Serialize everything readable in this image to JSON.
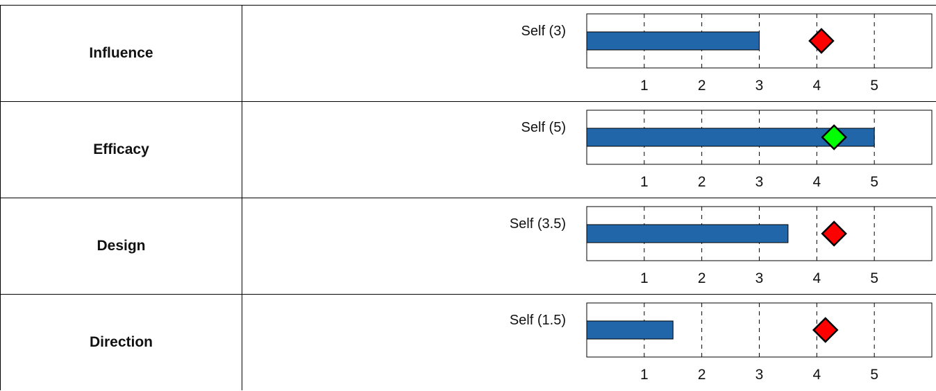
{
  "chart_data": [
    {
      "type": "bar",
      "category": "Influence",
      "bar_label": "Self (3)",
      "self_value": 3,
      "marker_value": 4.08,
      "marker_color": "#ff0000",
      "xlim": [
        0,
        6
      ],
      "xticks": [
        1,
        2,
        3,
        4,
        5
      ],
      "gridlines": "dashed vertical at ticks",
      "bar_color": "#2166a8"
    },
    {
      "type": "bar",
      "category": "Efficacy",
      "bar_label": "Self (5)",
      "self_value": 5,
      "marker_value": 4.3,
      "marker_color": "#00ff00",
      "xlim": [
        0,
        6
      ],
      "xticks": [
        1,
        2,
        3,
        4,
        5
      ],
      "gridlines": "dashed vertical at ticks",
      "bar_color": "#2166a8"
    },
    {
      "type": "bar",
      "category": "Design",
      "bar_label": "Self (3.5)",
      "self_value": 3.5,
      "marker_value": 4.3,
      "marker_color": "#ff0000",
      "xlim": [
        0,
        6
      ],
      "xticks": [
        1,
        2,
        3,
        4,
        5
      ],
      "gridlines": "dashed vertical at ticks",
      "bar_color": "#2166a8"
    },
    {
      "type": "bar",
      "category": "Direction",
      "bar_label": "Self (1.5)",
      "self_value": 1.5,
      "marker_value": 4.15,
      "marker_color": "#ff0000",
      "xlim": [
        0,
        6
      ],
      "xticks": [
        1,
        2,
        3,
        4,
        5
      ],
      "gridlines": "dashed vertical at ticks",
      "bar_color": "#2166a8"
    }
  ]
}
